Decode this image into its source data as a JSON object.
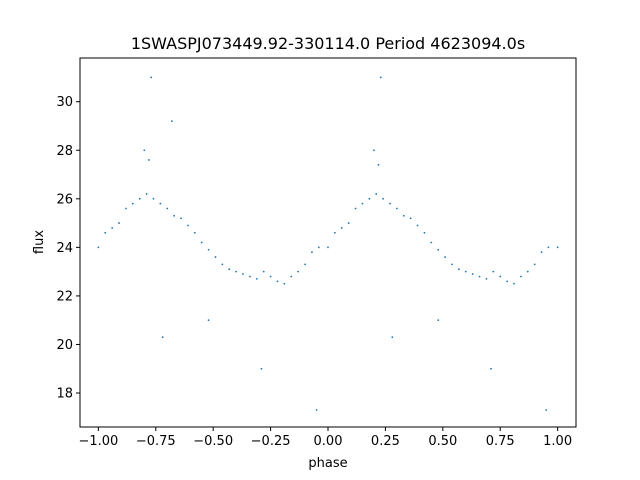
{
  "chart_data": {
    "type": "scatter",
    "title": "1SWASPJ073449.92-330114.0 Period 4623094.0s",
    "xlabel": "phase",
    "ylabel": "flux",
    "xlim": [
      -1.08,
      1.08
    ],
    "ylim": [
      16.6,
      31.8
    ],
    "xticks": [
      -1.0,
      -0.75,
      -0.5,
      -0.25,
      0.0,
      0.25,
      0.5,
      0.75,
      1.0
    ],
    "xtick_labels": [
      "−1.00",
      "−0.75",
      "−0.50",
      "−0.25",
      "0.00",
      "0.25",
      "0.50",
      "0.75",
      "1.00"
    ],
    "yticks": [
      18,
      20,
      22,
      24,
      26,
      28,
      30
    ],
    "ytick_labels": [
      "18",
      "20",
      "22",
      "24",
      "26",
      "28",
      "30"
    ],
    "marker_color": "#1f77b4",
    "grid": false,
    "legend": "none",
    "series": [
      {
        "points": [
          [
            -1.0,
            24.0
          ],
          [
            -0.97,
            24.6
          ],
          [
            -0.94,
            24.8
          ],
          [
            -0.91,
            25.0
          ],
          [
            -0.88,
            25.6
          ],
          [
            -0.85,
            25.8
          ],
          [
            -0.82,
            26.0
          ],
          [
            -0.79,
            26.2
          ],
          [
            -0.76,
            26.0
          ],
          [
            -0.73,
            25.8
          ],
          [
            -0.7,
            25.6
          ],
          [
            -0.67,
            25.3
          ],
          [
            -0.64,
            25.2
          ],
          [
            -0.61,
            24.9
          ],
          [
            -0.58,
            24.6
          ],
          [
            -0.55,
            24.2
          ],
          [
            -0.52,
            23.9
          ],
          [
            -0.49,
            23.6
          ],
          [
            -0.46,
            23.3
          ],
          [
            -0.43,
            23.1
          ],
          [
            -0.4,
            23.0
          ],
          [
            -0.37,
            22.9
          ],
          [
            -0.34,
            22.8
          ],
          [
            -0.31,
            22.7
          ],
          [
            -0.28,
            23.0
          ],
          [
            -0.25,
            22.8
          ],
          [
            -0.22,
            22.6
          ],
          [
            -0.19,
            22.5
          ],
          [
            -0.16,
            22.8
          ],
          [
            -0.13,
            23.0
          ],
          [
            -0.1,
            23.3
          ],
          [
            -0.07,
            23.8
          ],
          [
            -0.04,
            24.0
          ],
          [
            0.0,
            24.0
          ],
          [
            0.03,
            24.6
          ],
          [
            0.06,
            24.8
          ],
          [
            0.09,
            25.0
          ],
          [
            0.12,
            25.6
          ],
          [
            0.15,
            25.8
          ],
          [
            0.18,
            26.0
          ],
          [
            0.21,
            26.2
          ],
          [
            0.24,
            26.0
          ],
          [
            0.27,
            25.8
          ],
          [
            0.3,
            25.6
          ],
          [
            0.33,
            25.3
          ],
          [
            0.36,
            25.2
          ],
          [
            0.39,
            24.9
          ],
          [
            0.42,
            24.6
          ],
          [
            0.45,
            24.2
          ],
          [
            0.48,
            23.9
          ],
          [
            0.51,
            23.6
          ],
          [
            0.54,
            23.3
          ],
          [
            0.57,
            23.1
          ],
          [
            0.6,
            23.0
          ],
          [
            0.63,
            22.9
          ],
          [
            0.66,
            22.8
          ],
          [
            0.69,
            22.7
          ],
          [
            0.72,
            23.0
          ],
          [
            0.75,
            22.8
          ],
          [
            0.78,
            22.6
          ],
          [
            0.81,
            22.5
          ],
          [
            0.84,
            22.8
          ],
          [
            0.87,
            23.0
          ],
          [
            0.9,
            23.3
          ],
          [
            0.93,
            23.8
          ],
          [
            0.96,
            24.0
          ],
          [
            1.0,
            24.0
          ],
          [
            -0.8,
            28.0
          ],
          [
            -0.78,
            27.6
          ],
          [
            0.2,
            28.0
          ],
          [
            0.22,
            27.4
          ],
          [
            -0.68,
            29.2
          ],
          [
            -0.29,
            19.0
          ],
          [
            0.71,
            19.0
          ],
          [
            -0.77,
            31.0
          ],
          [
            0.23,
            31.0
          ],
          [
            -0.52,
            21.0
          ],
          [
            0.48,
            21.0
          ],
          [
            -0.72,
            20.3
          ],
          [
            0.28,
            20.3
          ],
          [
            -0.05,
            17.3
          ],
          [
            0.95,
            17.3
          ]
        ]
      }
    ]
  }
}
